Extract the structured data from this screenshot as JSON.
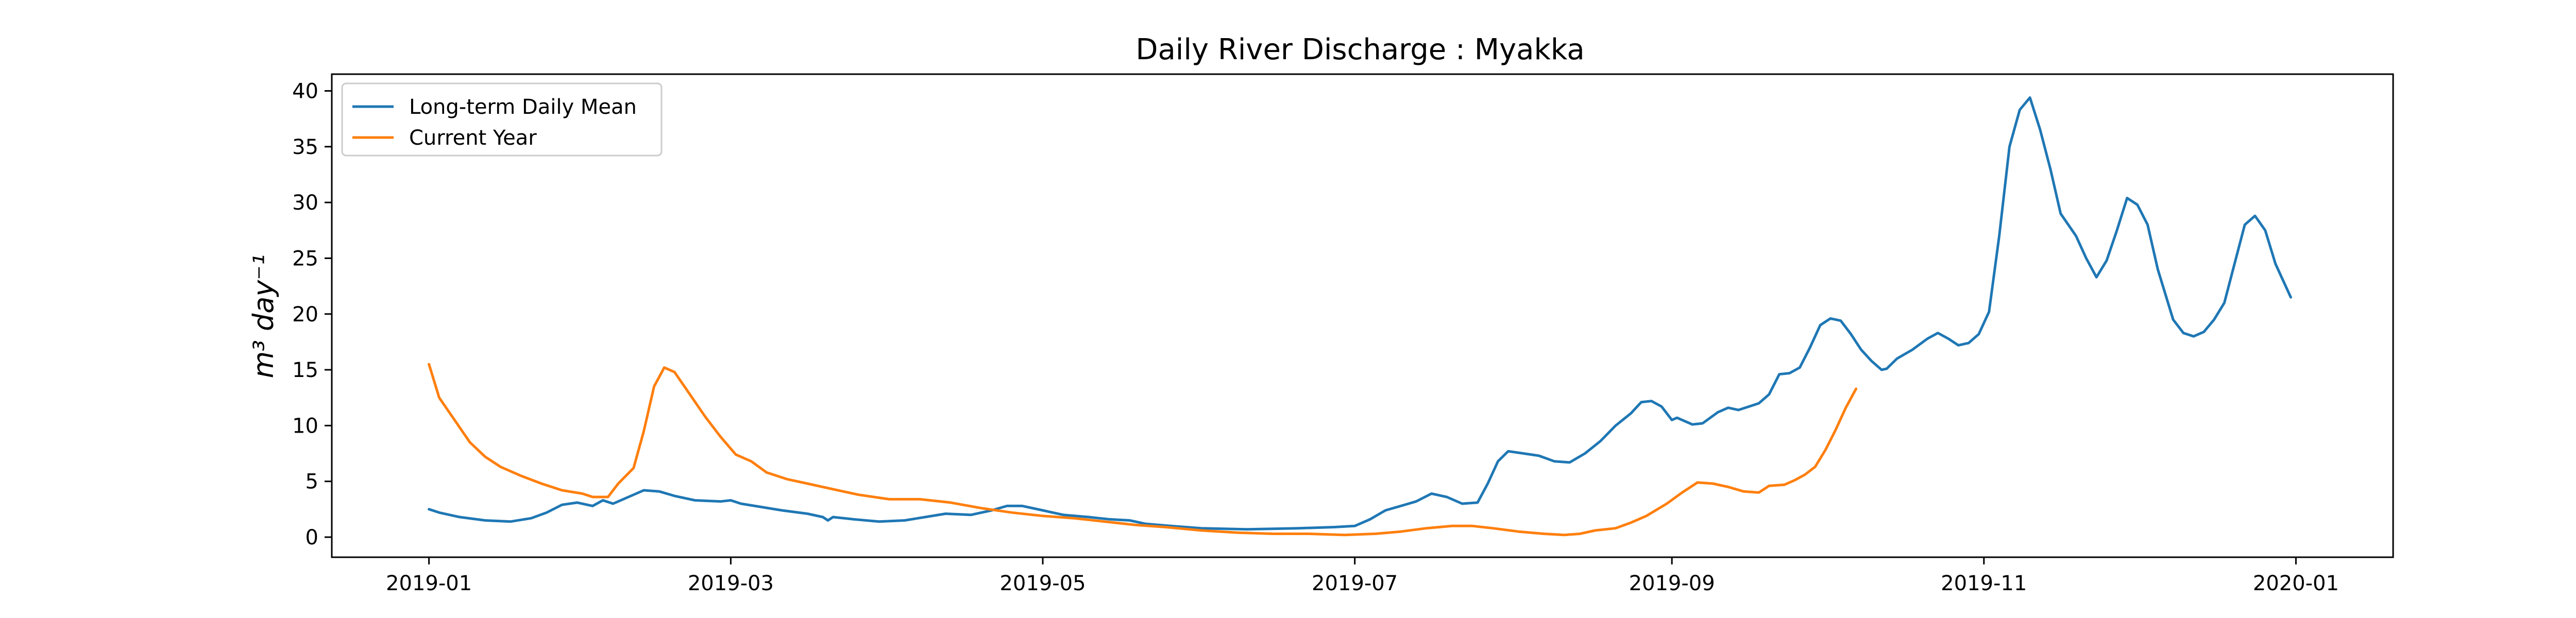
{
  "chart_data": {
    "type": "line",
    "title": "Daily River Discharge : Myakka",
    "ylabel": "m³ day⁻¹",
    "xlabel": "",
    "xlim": [
      "2018-12-13",
      "2020-01-20"
    ],
    "ylim": [
      -1.8,
      41.5
    ],
    "x_ticks": [
      "2019-01",
      "2019-03",
      "2019-05",
      "2019-07",
      "2019-09",
      "2019-11",
      "2020-01"
    ],
    "y_ticks": [
      0,
      5,
      10,
      15,
      20,
      25,
      30,
      35,
      40
    ],
    "grid": false,
    "legend_position": "top-left",
    "series": [
      {
        "name": "Long-term Daily Mean",
        "color": "#1f77b4",
        "points": [
          [
            "2019-01-01",
            2.5
          ],
          [
            "2019-01-03",
            2.2
          ],
          [
            "2019-01-07",
            1.8
          ],
          [
            "2019-01-12",
            1.5
          ],
          [
            "2019-01-17",
            1.4
          ],
          [
            "2019-01-21",
            1.7
          ],
          [
            "2019-01-24",
            2.2
          ],
          [
            "2019-01-27",
            2.9
          ],
          [
            "2019-01-30",
            3.1
          ],
          [
            "2019-02-02",
            2.8
          ],
          [
            "2019-02-04",
            3.3
          ],
          [
            "2019-02-06",
            3.0
          ],
          [
            "2019-02-09",
            3.6
          ],
          [
            "2019-02-12",
            4.2
          ],
          [
            "2019-02-15",
            4.1
          ],
          [
            "2019-02-18",
            3.7
          ],
          [
            "2019-02-22",
            3.3
          ],
          [
            "2019-02-27",
            3.2
          ],
          [
            "2019-03-01",
            3.3
          ],
          [
            "2019-03-03",
            3.0
          ],
          [
            "2019-03-07",
            2.7
          ],
          [
            "2019-03-11",
            2.4
          ],
          [
            "2019-03-16",
            2.1
          ],
          [
            "2019-03-19",
            1.8
          ],
          [
            "2019-03-20",
            1.5
          ],
          [
            "2019-03-21",
            1.8
          ],
          [
            "2019-03-25",
            1.6
          ],
          [
            "2019-03-30",
            1.4
          ],
          [
            "2019-04-04",
            1.5
          ],
          [
            "2019-04-08",
            1.8
          ],
          [
            "2019-04-12",
            2.1
          ],
          [
            "2019-04-17",
            2.0
          ],
          [
            "2019-04-21",
            2.4
          ],
          [
            "2019-04-24",
            2.8
          ],
          [
            "2019-04-27",
            2.8
          ],
          [
            "2019-05-01",
            2.4
          ],
          [
            "2019-05-05",
            2.0
          ],
          [
            "2019-05-10",
            1.8
          ],
          [
            "2019-05-14",
            1.6
          ],
          [
            "2019-05-18",
            1.5
          ],
          [
            "2019-05-21",
            1.2
          ],
          [
            "2019-05-26",
            1.0
          ],
          [
            "2019-06-01",
            0.8
          ],
          [
            "2019-06-10",
            0.7
          ],
          [
            "2019-06-20",
            0.8
          ],
          [
            "2019-06-27",
            0.9
          ],
          [
            "2019-07-01",
            1.0
          ],
          [
            "2019-07-04",
            1.6
          ],
          [
            "2019-07-07",
            2.4
          ],
          [
            "2019-07-10",
            2.8
          ],
          [
            "2019-07-13",
            3.2
          ],
          [
            "2019-07-16",
            3.9
          ],
          [
            "2019-07-19",
            3.6
          ],
          [
            "2019-07-22",
            3.0
          ],
          [
            "2019-07-25",
            3.1
          ],
          [
            "2019-07-27",
            4.8
          ],
          [
            "2019-07-29",
            6.8
          ],
          [
            "2019-07-31",
            7.7
          ],
          [
            "2019-08-03",
            7.5
          ],
          [
            "2019-08-06",
            7.3
          ],
          [
            "2019-08-09",
            6.8
          ],
          [
            "2019-08-12",
            6.7
          ],
          [
            "2019-08-15",
            7.5
          ],
          [
            "2019-08-18",
            8.6
          ],
          [
            "2019-08-21",
            10.0
          ],
          [
            "2019-08-24",
            11.1
          ],
          [
            "2019-08-26",
            12.1
          ],
          [
            "2019-08-28",
            12.2
          ],
          [
            "2019-08-30",
            11.7
          ],
          [
            "2019-09-02",
            10.7
          ],
          [
            "2019-09-05",
            10.1
          ],
          [
            "2019-09-07",
            10.2
          ],
          [
            "2019-09-10",
            11.2
          ],
          [
            "2019-09-12",
            11.6
          ],
          [
            "2019-09-14",
            11.4
          ],
          [
            "2019-09-16",
            11.7
          ],
          [
            "2019-09-18",
            12.0
          ],
          [
            "2019-09-20",
            12.8
          ],
          [
            "2019-09-22",
            14.6
          ],
          [
            "2019-09-24",
            14.7
          ],
          [
            "2019-09-26",
            15.2
          ],
          [
            "2019-09-28",
            17.0
          ],
          [
            "2019-09-30",
            19.0
          ],
          [
            "2019-10-02",
            19.6
          ],
          [
            "2019-10-04",
            19.4
          ],
          [
            "2019-10-06",
            18.2
          ],
          [
            "2019-10-08",
            16.8
          ],
          [
            "2019-10-10",
            15.8
          ],
          [
            "2019-10-12",
            15.0
          ],
          [
            "2019-10-13",
            15.1
          ],
          [
            "2019-10-15",
            16.0
          ],
          [
            "2019-10-18",
            16.8
          ],
          [
            "2019-10-21",
            17.8
          ],
          [
            "2019-10-23",
            18.3
          ],
          [
            "2019-10-25",
            17.8
          ],
          [
            "2019-10-27",
            17.2
          ],
          [
            "2019-10-29",
            17.4
          ],
          [
            "2019-10-31",
            18.2
          ],
          [
            "2019-11-02",
            20.2
          ],
          [
            "2019-11-04",
            27.0
          ],
          [
            "2019-11-06",
            35.0
          ],
          [
            "2019-11-08",
            38.3
          ],
          [
            "2019-11-10",
            39.4
          ],
          [
            "2019-11-12",
            36.5
          ],
          [
            "2019-11-14",
            33.0
          ],
          [
            "2019-11-16",
            29.0
          ],
          [
            "2019-11-19",
            27.0
          ],
          [
            "2019-11-21",
            25.0
          ],
          [
            "2019-11-23",
            23.3
          ],
          [
            "2019-11-25",
            24.8
          ],
          [
            "2019-11-27",
            27.5
          ],
          [
            "2019-11-29",
            30.4
          ],
          [
            "2019-12-01",
            29.8
          ],
          [
            "2019-12-03",
            28.0
          ],
          [
            "2019-12-05",
            24.0
          ],
          [
            "2019-12-08",
            19.5
          ],
          [
            "2019-12-10",
            18.3
          ],
          [
            "2019-12-12",
            18.0
          ],
          [
            "2019-12-14",
            18.4
          ],
          [
            "2019-12-16",
            19.5
          ],
          [
            "2019-12-18",
            21.0
          ],
          [
            "2019-12-20",
            24.5
          ],
          [
            "2019-12-22",
            28.0
          ],
          [
            "2019-12-24",
            28.8
          ],
          [
            "2019-12-26",
            27.5
          ],
          [
            "2019-12-28",
            24.5
          ],
          [
            "2019-12-31",
            21.5
          ],
          [
            "2019-09-01",
            10.5
          ]
        ]
      },
      {
        "name": "Current Year",
        "color": "#ff7f0e",
        "points": [
          [
            "2019-01-01",
            15.5
          ],
          [
            "2019-01-03",
            12.5
          ],
          [
            "2019-01-06",
            10.5
          ],
          [
            "2019-01-09",
            8.5
          ],
          [
            "2019-01-12",
            7.2
          ],
          [
            "2019-01-15",
            6.3
          ],
          [
            "2019-01-19",
            5.5
          ],
          [
            "2019-01-23",
            4.8
          ],
          [
            "2019-01-27",
            4.2
          ],
          [
            "2019-01-31",
            3.9
          ],
          [
            "2019-02-02",
            3.6
          ],
          [
            "2019-02-05",
            3.6
          ],
          [
            "2019-02-07",
            4.8
          ],
          [
            "2019-02-10",
            6.2
          ],
          [
            "2019-02-12",
            9.5
          ],
          [
            "2019-02-14",
            13.5
          ],
          [
            "2019-02-16",
            15.2
          ],
          [
            "2019-02-18",
            14.8
          ],
          [
            "2019-02-21",
            12.8
          ],
          [
            "2019-02-24",
            10.8
          ],
          [
            "2019-02-27",
            9.0
          ],
          [
            "2019-03-02",
            7.4
          ],
          [
            "2019-03-05",
            6.8
          ],
          [
            "2019-03-08",
            5.8
          ],
          [
            "2019-03-12",
            5.2
          ],
          [
            "2019-03-16",
            4.8
          ],
          [
            "2019-03-21",
            4.3
          ],
          [
            "2019-03-26",
            3.8
          ],
          [
            "2019-04-01",
            3.4
          ],
          [
            "2019-04-07",
            3.4
          ],
          [
            "2019-04-13",
            3.1
          ],
          [
            "2019-04-19",
            2.6
          ],
          [
            "2019-04-25",
            2.2
          ],
          [
            "2019-05-01",
            1.9
          ],
          [
            "2019-05-07",
            1.7
          ],
          [
            "2019-05-13",
            1.4
          ],
          [
            "2019-05-19",
            1.1
          ],
          [
            "2019-05-25",
            0.9
          ],
          [
            "2019-06-01",
            0.6
          ],
          [
            "2019-06-08",
            0.4
          ],
          [
            "2019-06-15",
            0.3
          ],
          [
            "2019-06-22",
            0.3
          ],
          [
            "2019-06-29",
            0.2
          ],
          [
            "2019-07-05",
            0.3
          ],
          [
            "2019-07-10",
            0.5
          ],
          [
            "2019-07-15",
            0.8
          ],
          [
            "2019-07-20",
            1.0
          ],
          [
            "2019-07-24",
            1.0
          ],
          [
            "2019-07-28",
            0.8
          ],
          [
            "2019-08-02",
            0.5
          ],
          [
            "2019-08-07",
            0.3
          ],
          [
            "2019-08-11",
            0.2
          ],
          [
            "2019-08-14",
            0.3
          ],
          [
            "2019-08-17",
            0.6
          ],
          [
            "2019-08-21",
            0.8
          ],
          [
            "2019-08-24",
            1.3
          ],
          [
            "2019-08-27",
            1.9
          ],
          [
            "2019-08-31",
            3.0
          ],
          [
            "2019-09-03",
            4.0
          ],
          [
            "2019-09-06",
            4.9
          ],
          [
            "2019-09-09",
            4.8
          ],
          [
            "2019-09-12",
            4.5
          ],
          [
            "2019-09-15",
            4.1
          ],
          [
            "2019-09-18",
            4.0
          ],
          [
            "2019-09-20",
            4.6
          ],
          [
            "2019-09-23",
            4.7
          ],
          [
            "2019-09-25",
            5.1
          ],
          [
            "2019-09-27",
            5.6
          ],
          [
            "2019-09-29",
            6.3
          ],
          [
            "2019-10-01",
            7.8
          ],
          [
            "2019-10-03",
            9.6
          ],
          [
            "2019-10-05",
            11.6
          ],
          [
            "2019-10-07",
            13.3
          ]
        ]
      }
    ]
  }
}
